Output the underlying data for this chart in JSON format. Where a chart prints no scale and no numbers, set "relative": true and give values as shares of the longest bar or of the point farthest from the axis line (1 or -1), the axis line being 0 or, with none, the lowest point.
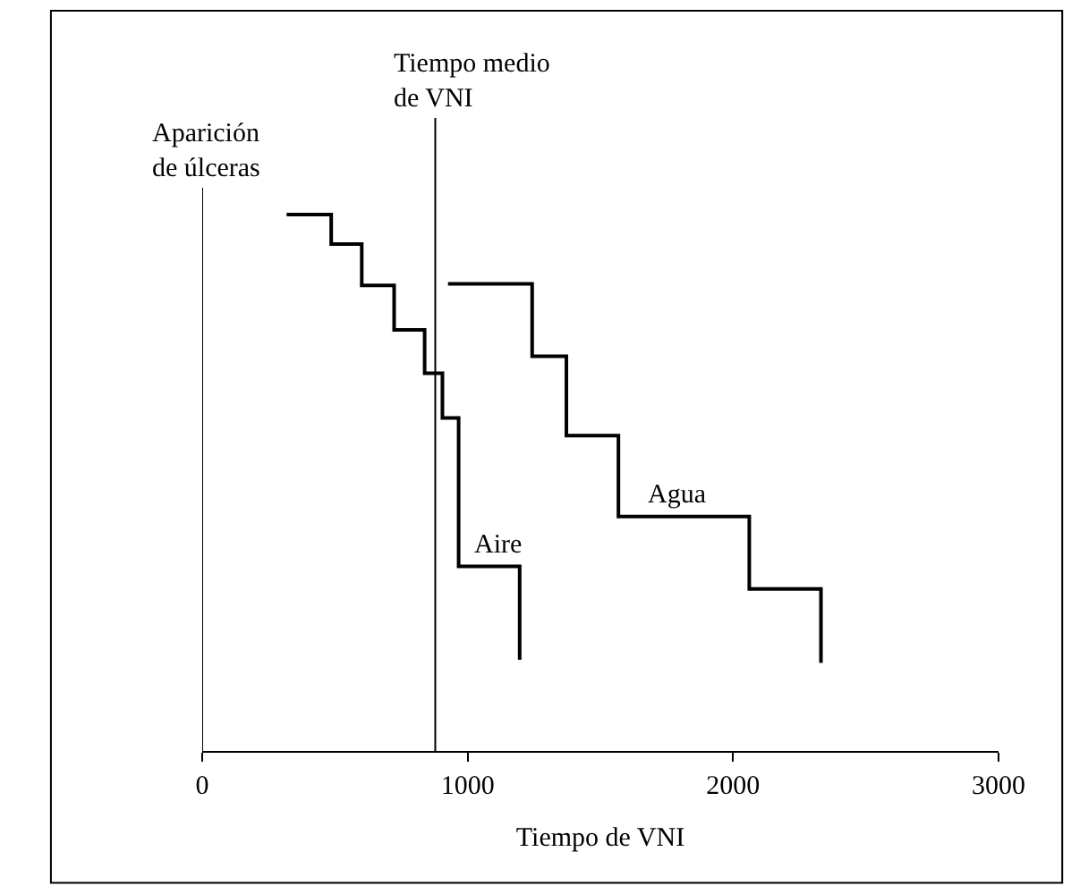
{
  "chart_data": {
    "type": "step",
    "relative": true,
    "xlabel": "Tiempo de VNI",
    "xlim": [
      0,
      3000
    ],
    "xticks": [
      0,
      1000,
      2000,
      3000
    ],
    "legend": false,
    "tick_labels": "x",
    "series": [
      {
        "name": "Aire",
        "color": "#000000",
        "x": [
          318,
          486,
          601,
          723,
          838,
          905,
          966,
          1196
        ],
        "values": [
          1.0,
          0.945,
          0.868,
          0.785,
          0.704,
          0.621,
          0.344,
          0.17
        ]
      },
      {
        "name": "Agua",
        "color": "#000000",
        "x": [
          926,
          1243,
          1372,
          1568,
          2061,
          2331
        ],
        "values": [
          0.871,
          0.736,
          0.588,
          0.437,
          0.302,
          0.164
        ]
      }
    ],
    "ref_lines": [
      {
        "axis": "x",
        "value": 0,
        "label": "Aparición\nde úlceras",
        "color": "#000000"
      },
      {
        "axis": "x",
        "value": 878,
        "label": "Tiempo medio\nde VNI",
        "color": "#000000"
      }
    ]
  }
}
